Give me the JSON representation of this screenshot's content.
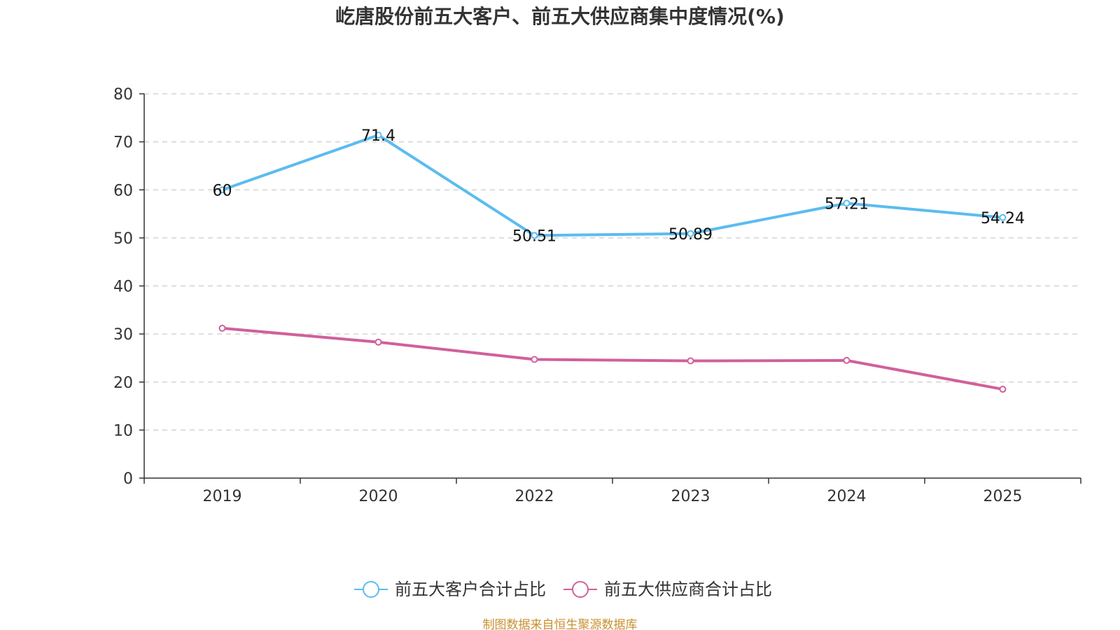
{
  "chart_data": {
    "type": "line",
    "title": "屹唐股份前五大客户、前五大供应商集中度情况(%)",
    "categories": [
      "2019",
      "2020",
      "2022",
      "2023",
      "2024",
      "2025"
    ],
    "series": [
      {
        "name": "前五大客户合计占比",
        "color": "#5bbcf0",
        "values": [
          60,
          71.4,
          50.51,
          50.89,
          57.21,
          54.24
        ],
        "labels": [
          "60",
          "71.4",
          "50.51",
          "50.89",
          "57.21",
          "54.24"
        ]
      },
      {
        "name": "前五大供应商合计占比",
        "color": "#d0609c",
        "values": [
          31.2,
          28.3,
          24.7,
          24.4,
          24.5,
          18.5
        ],
        "labels": []
      }
    ],
    "xlabel": "",
    "ylabel": "",
    "ylim": [
      0,
      80
    ],
    "yticks": [
      "0",
      "10",
      "20",
      "30",
      "40",
      "50",
      "60",
      "70",
      "80"
    ],
    "grid": true,
    "legend_position": "bottom-center",
    "source": "制图数据来自恒生聚源数据库"
  }
}
